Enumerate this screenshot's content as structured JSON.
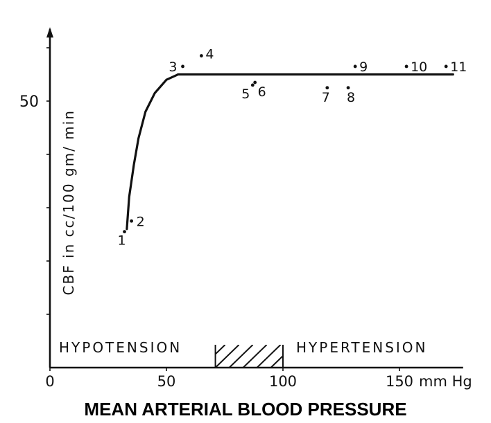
{
  "chart_data": {
    "type": "line",
    "title": "",
    "xlabel": "MEAN ARTERIAL BLOOD PRESSURE",
    "ylabel": "CBF in cc/100 gm/ min",
    "xlim": [
      0,
      180
    ],
    "ylim": [
      0,
      64
    ],
    "x_ticks": [
      {
        "value": 0,
        "label": "0"
      },
      {
        "value": 50,
        "label": "50"
      },
      {
        "value": 100,
        "label": "100"
      },
      {
        "value": 150,
        "label": "150"
      }
    ],
    "x_unit": "mm Hg",
    "y_ticks": [
      {
        "value": 50,
        "label": "50"
      }
    ],
    "curve": {
      "x": [
        33,
        34,
        36,
        38,
        41,
        45,
        50,
        55,
        100,
        150,
        173
      ],
      "y": [
        26,
        32,
        38,
        43,
        48,
        51.5,
        54,
        55,
        55,
        55,
        55
      ]
    },
    "points": [
      {
        "label": "1",
        "x": 32,
        "y": 25.5
      },
      {
        "label": "2",
        "x": 35,
        "y": 27.5
      },
      {
        "label": "3",
        "x": 57,
        "y": 56.5
      },
      {
        "label": "4",
        "x": 65,
        "y": 58.5
      },
      {
        "label": "5",
        "x": 87,
        "y": 53
      },
      {
        "label": "6",
        "x": 88,
        "y": 53.5
      },
      {
        "label": "7",
        "x": 119,
        "y": 52.5
      },
      {
        "label": "8",
        "x": 128,
        "y": 52.5
      },
      {
        "label": "9",
        "x": 131,
        "y": 56.5
      },
      {
        "label": "10",
        "x": 153,
        "y": 56.5
      },
      {
        "label": "11",
        "x": 170,
        "y": 56.5
      }
    ],
    "regions": [
      {
        "label": "HYPOTENSION"
      },
      {
        "label": "HYPERTENSION"
      }
    ],
    "hatched_band": [
      71,
      100
    ],
    "grid": false,
    "legend": "none"
  }
}
